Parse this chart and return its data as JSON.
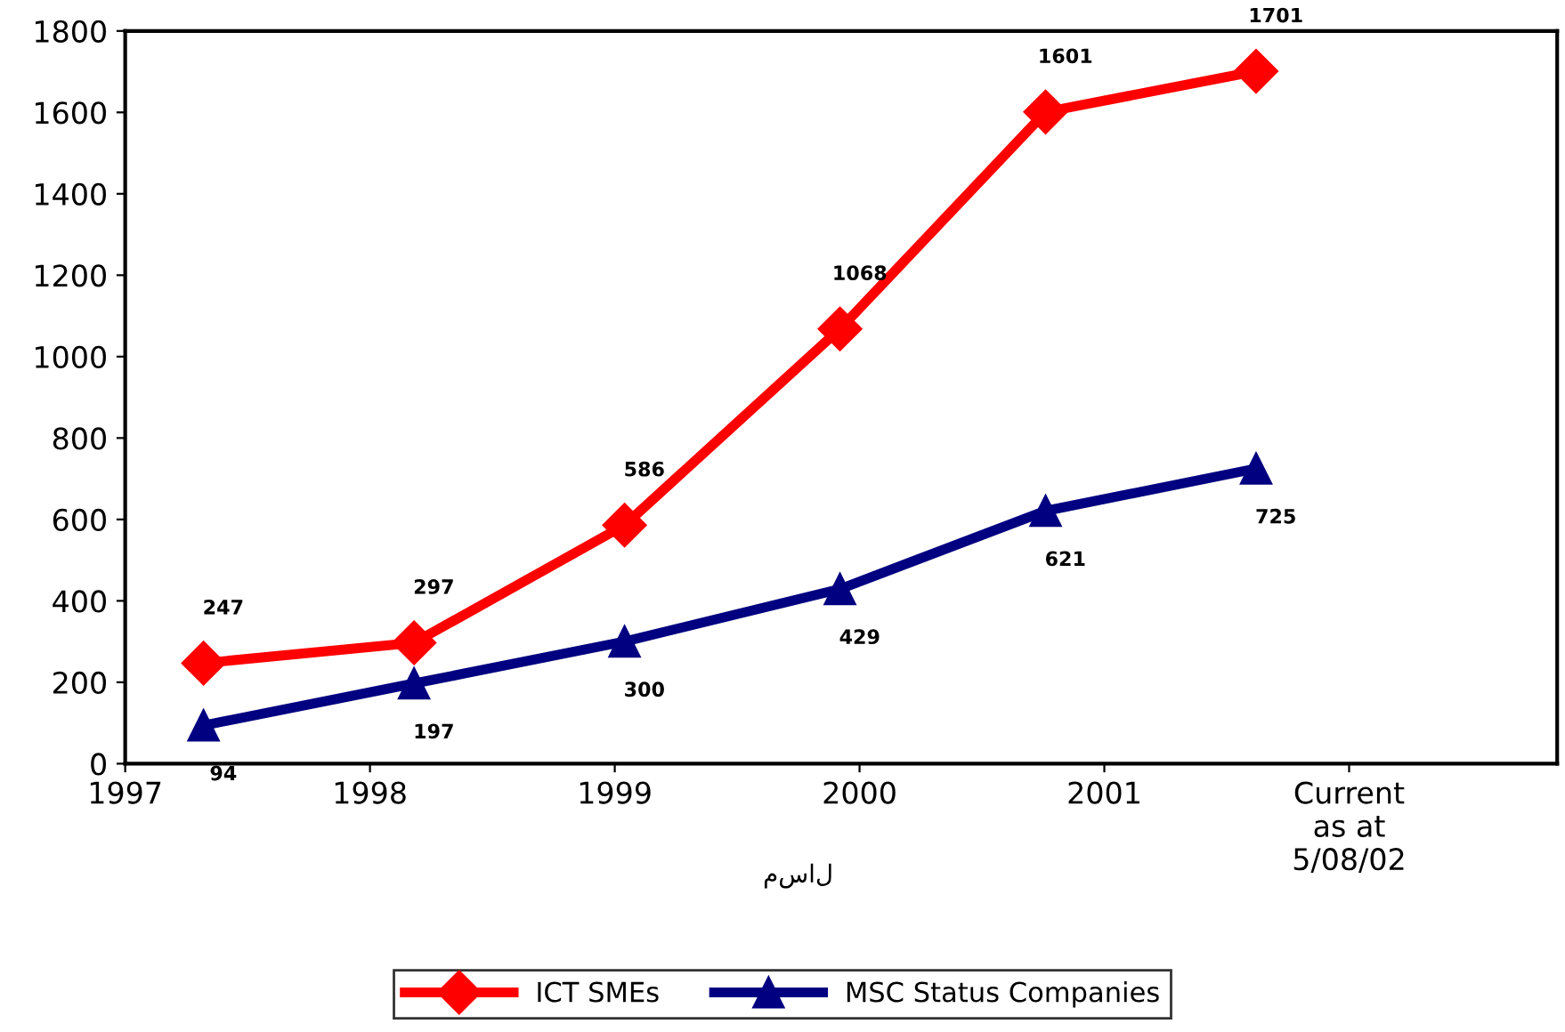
{
  "chart_data": {
    "type": "line",
    "x": [
      1997.32,
      1998.18,
      1999.04,
      1999.92,
      2000.76,
      2001.62
    ],
    "series": [
      {
        "name": "ICT SMEs",
        "color": "#ff0000",
        "marker": "diamond",
        "values": [
          247,
          297,
          586,
          1068,
          1601,
          1701
        ]
      },
      {
        "name": "MSC Status Companies",
        "color": "#000080",
        "marker": "triangle",
        "values": [
          94,
          197,
          300,
          429,
          621,
          725
        ]
      }
    ],
    "xlim": [
      1997,
      2002.85
    ],
    "xticks": [
      1997,
      1998,
      1999,
      2000,
      2001,
      {
        "value": 2002,
        "label": "Current\nas at\n5/08/02"
      }
    ],
    "ylim": [
      0,
      1800
    ],
    "yticks": [
      0,
      200,
      400,
      600,
      800,
      1000,
      1200,
      1400,
      1600,
      1800
    ],
    "data_labels": true,
    "grid": false,
    "legend": "bottom",
    "line_style": "solid",
    "annotations": [
      "مسال"
    ]
  }
}
